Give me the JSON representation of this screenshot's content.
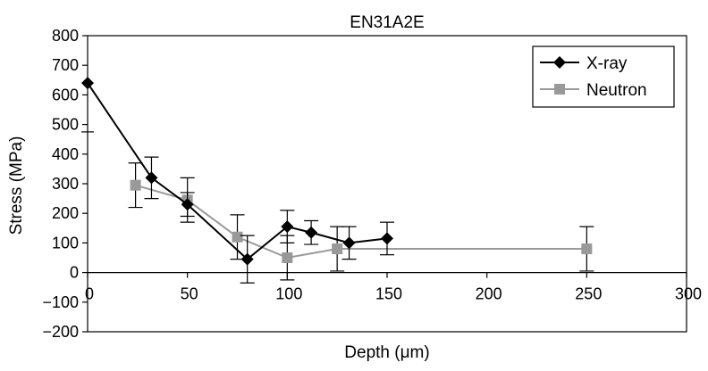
{
  "chart_data": {
    "type": "line",
    "title": "EN31A2E",
    "xlabel": "Depth (μm)",
    "ylabel": "Stress (MPa)",
    "xlim": [
      0,
      300
    ],
    "ylim": [
      -200,
      800
    ],
    "xticks": [
      0,
      50,
      100,
      150,
      200,
      250,
      300
    ],
    "yticks": [
      -200,
      -100,
      0,
      100,
      200,
      300,
      400,
      500,
      600,
      700,
      800
    ],
    "tick_labels_x": [
      "0",
      "50",
      "100",
      "150",
      "200",
      "250",
      "300"
    ],
    "tick_labels_y": [
      "−200",
      "−100",
      "0",
      "100",
      "200",
      "300",
      "400",
      "500",
      "600",
      "700",
      "800"
    ],
    "grid": false,
    "legend_position": "top-right",
    "series": [
      {
        "name": "X-ray",
        "color": "#000000",
        "marker": "diamond",
        "points": [
          {
            "x": 0,
            "y": 640
          },
          {
            "x": 32,
            "y": 320,
            "err": 70
          },
          {
            "x": 50,
            "y": 230,
            "err": 40
          },
          {
            "x": 80,
            "y": 45,
            "err": 80
          },
          {
            "x": 100,
            "y": 155,
            "err": 55
          },
          {
            "x": 112,
            "y": 135,
            "err": 40
          },
          {
            "x": 131,
            "y": 100,
            "err": 55
          },
          {
            "x": 150,
            "y": 115,
            "err": 55
          }
        ]
      },
      {
        "name": "Neutron",
        "color": "#999999",
        "marker": "square",
        "points": [
          {
            "x": 24,
            "y": 295,
            "err": 75
          },
          {
            "x": 50,
            "y": 245,
            "err": 75
          },
          {
            "x": 75,
            "y": 120,
            "err": 75
          },
          {
            "x": 100,
            "y": 50,
            "err": 75
          },
          {
            "x": 125,
            "y": 80,
            "err": 75
          },
          {
            "x": 250,
            "y": 80,
            "err": 75
          }
        ]
      }
    ]
  }
}
